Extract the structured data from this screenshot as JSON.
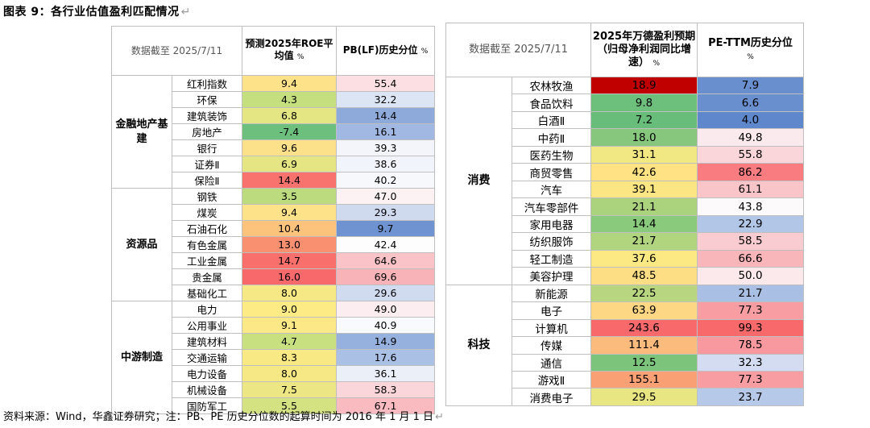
{
  "title": "图表 9：各行业估值盈利匹配情况",
  "footnote": "资料来源：Wind，华鑫证券研究；注：PB、PE 历史分位数的起算时间为 2016 年 1 月 1 日",
  "return_mark": "↵",
  "left_table": {
    "date_header": "数据截至 2025/7/11",
    "col1_header": "预测2025年ROE平均值",
    "col2_header": "PB(LF)历史分位",
    "unit": "%",
    "groups": [
      {
        "name": "金融地产基建",
        "rows": [
          {
            "industry": "红利指数",
            "v1": "9.4",
            "v2": "55.4",
            "c1": "#fde28a",
            "c2": "#fbdfe2"
          },
          {
            "industry": "环保",
            "v1": "4.3",
            "v2": "32.2",
            "c1": "#c5df7f",
            "c2": "#dce5f3"
          },
          {
            "industry": "建筑装饰",
            "v1": "6.8",
            "v2": "14.4",
            "c1": "#e4e583",
            "c2": "#8eaadb"
          },
          {
            "industry": "房地产",
            "v1": "-7.4",
            "v2": "16.1",
            "c1": "#6cbf7c",
            "c2": "#a1b9e2"
          },
          {
            "industry": "银行",
            "v1": "9.6",
            "v2": "39.3",
            "c1": "#fde18a",
            "c2": "#f3f5fb"
          },
          {
            "industry": "证券Ⅱ",
            "v1": "6.9",
            "v2": "38.6",
            "c1": "#e5e583",
            "c2": "#f1f4fa"
          },
          {
            "industry": "保险Ⅱ",
            "v1": "14.4",
            "v2": "40.2",
            "c1": "#f8736e",
            "c2": "#f7f8fc"
          }
        ]
      },
      {
        "name": "资源品",
        "rows": [
          {
            "industry": "钢铁",
            "v1": "3.5",
            "v2": "47.0",
            "c1": "#bcdb7e",
            "c2": "#fcf2f4"
          },
          {
            "industry": "煤炭",
            "v1": "9.4",
            "v2": "29.3",
            "c1": "#fde28a",
            "c2": "#cfdaef"
          },
          {
            "industry": "石油石化",
            "v1": "10.4",
            "v2": "9.7",
            "c1": "#fcc37c",
            "c2": "#6f93d0"
          },
          {
            "industry": "有色金属",
            "v1": "13.0",
            "v2": "42.4",
            "c1": "#f9906f",
            "c2": "#fdfdfe"
          },
          {
            "industry": "工业金属",
            "v1": "14.7",
            "v2": "64.6",
            "c1": "#f86f6b",
            "c2": "#f9c3c7"
          },
          {
            "industry": "贵金属",
            "v1": "16.0",
            "v2": "69.6",
            "c1": "#f8696b",
            "c2": "#f8b3b8"
          },
          {
            "industry": "基础化工",
            "v1": "8.0",
            "v2": "29.6",
            "c1": "#f5e885",
            "c2": "#d1dbef"
          }
        ]
      },
      {
        "name": "中游制造",
        "rows": [
          {
            "industry": "电力",
            "v1": "9.0",
            "v2": "49.0",
            "c1": "#fdeb86",
            "c2": "#fcedf0"
          },
          {
            "industry": "公用事业",
            "v1": "9.1",
            "v2": "40.9",
            "c1": "#fde888",
            "c2": "#f9fafd"
          },
          {
            "industry": "建筑材料",
            "v1": "4.7",
            "v2": "14.9",
            "c1": "#c9e080",
            "c2": "#97b1de"
          },
          {
            "industry": "交通运输",
            "v1": "8.3",
            "v2": "17.6",
            "c1": "#f9e985",
            "c2": "#aac0e5"
          },
          {
            "industry": "电力设备",
            "v1": "8.0",
            "v2": "36.1",
            "c1": "#f5e885",
            "c2": "#ebeff8"
          },
          {
            "industry": "机械设备",
            "v1": "7.5",
            "v2": "58.3",
            "c1": "#ede684",
            "c2": "#fad5d9"
          },
          {
            "industry": "国防军工",
            "v1": "5.5",
            "v2": "67.1",
            "c1": "#d5e281",
            "c2": "#f9bbc0"
          }
        ]
      }
    ]
  },
  "right_table": {
    "date_header": "数据截至 2025/7/11",
    "col1_header": "2025年万德盈利预期（归母净利润同比增速）",
    "col2_header": "PE-TTM历史分位",
    "unit": "%",
    "groups": [
      {
        "name": "消费",
        "rows": [
          {
            "industry": "农林牧渔",
            "v1": "18.9",
            "v2": "7.9",
            "c1": "#c00000",
            "c2": "#6a8fcf"
          },
          {
            "industry": "食品饮料",
            "v1": "9.8",
            "v2": "6.6",
            "c1": "#6cc07b",
            "c2": "#6a8fcf"
          },
          {
            "industry": "白酒Ⅱ",
            "v1": "7.2",
            "v2": "4.0",
            "c1": "#68bd7a",
            "c2": "#5f87cb"
          },
          {
            "industry": "中药Ⅱ",
            "v1": "18.0",
            "v2": "49.8",
            "c1": "#86c77d",
            "c2": "#fbeaed"
          },
          {
            "industry": "医药生物",
            "v1": "31.1",
            "v2": "55.8",
            "c1": "#f1e884",
            "c2": "#fad5d9"
          },
          {
            "industry": "商贸零售",
            "v1": "42.6",
            "v2": "86.2",
            "c1": "#fee283",
            "c2": "#f87c80"
          },
          {
            "industry": "汽车",
            "v1": "39.1",
            "v2": "61.1",
            "c1": "#fce683",
            "c2": "#f9c5c9"
          },
          {
            "industry": "汽车零部件",
            "v1": "21.1",
            "v2": "43.8",
            "c1": "#abd37e",
            "c2": "#fdfafb"
          },
          {
            "industry": "家用电器",
            "v1": "14.4",
            "v2": "22.9",
            "c1": "#8aca7d",
            "c2": "#b2c6e7"
          },
          {
            "industry": "纺织服饰",
            "v1": "21.7",
            "v2": "58.5",
            "c1": "#b1d47f",
            "c2": "#f9ccd1"
          },
          {
            "industry": "轻工制造",
            "v1": "37.6",
            "v2": "66.6",
            "c1": "#fce984",
            "c2": "#f8b6bb"
          },
          {
            "industry": "美容护理",
            "v1": "48.5",
            "v2": "50.0",
            "c1": "#fede84",
            "c2": "#fbe9ec"
          }
        ]
      },
      {
        "name": "科技",
        "rows": [
          {
            "industry": "新能源",
            "v1": "22.5",
            "v2": "21.7",
            "c1": "#b8d67f",
            "c2": "#a9c0e4"
          },
          {
            "industry": "电子",
            "v1": "63.9",
            "v2": "77.3",
            "c1": "#fed784",
            "c2": "#f89ea3"
          },
          {
            "industry": "计算机",
            "v1": "243.6",
            "v2": "99.3",
            "c1": "#f8696b",
            "c2": "#f8696b"
          },
          {
            "industry": "传媒",
            "v1": "111.4",
            "v2": "78.5",
            "c1": "#fbbb7c",
            "c2": "#f899a0"
          },
          {
            "industry": "通信",
            "v1": "12.5",
            "v2": "32.3",
            "c1": "#7cc47c",
            "c2": "#d3dcf0"
          },
          {
            "industry": "游戏Ⅱ",
            "v1": "155.1",
            "v2": "77.3",
            "c1": "#f9a075",
            "c2": "#f89ea3"
          },
          {
            "industry": "消费电子",
            "v1": "29.5",
            "v2": "23.7",
            "c1": "#e8e583",
            "c2": "#b7c9e9"
          }
        ]
      }
    ]
  }
}
